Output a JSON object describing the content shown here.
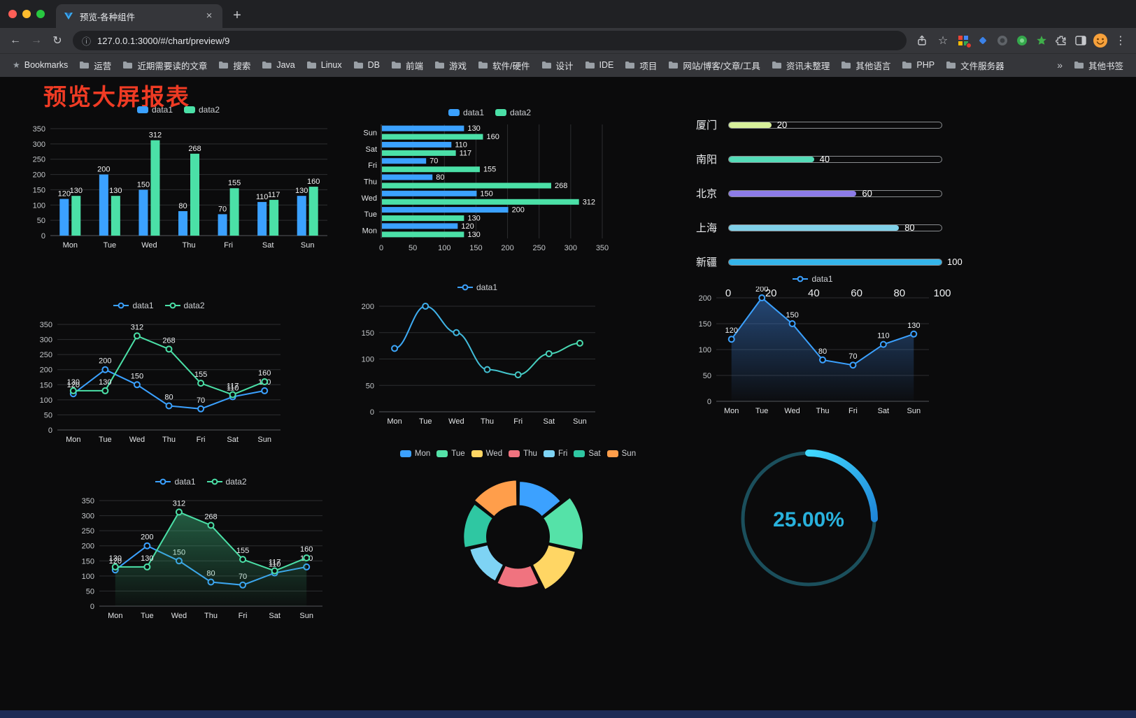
{
  "browser": {
    "tab_title": "预览-各种组件",
    "url": "127.0.0.1:3000/#/chart/preview/9"
  },
  "icons": {
    "back": "←",
    "forward": "→",
    "reload": "↻",
    "info": "ⓘ",
    "star": "☆",
    "new_tab": "+",
    "close_tab": "×",
    "menu": "⋮",
    "overflow": "»",
    "bookmarks_star": "★"
  },
  "bookmarks": {
    "label": "Bookmarks",
    "folders": [
      "运营",
      "近期需要读的文章",
      "搜索",
      "Java",
      "Linux",
      "DB",
      "前端",
      "游戏",
      "软件/硬件",
      "设计",
      "IDE",
      "项目",
      "网站/博客/文章/工具",
      "资讯未整理",
      "其他语言",
      "PHP",
      "文件服务器"
    ],
    "other_label": "其他书签"
  },
  "page": {
    "title": "预览大屏报表"
  },
  "chart_data": [
    {
      "id": "bar1",
      "type": "bar",
      "legend_position": "top",
      "categories": [
        "Mon",
        "Tue",
        "Wed",
        "Thu",
        "Fri",
        "Sat",
        "Sun"
      ],
      "series": [
        {
          "name": "data1",
          "color": "#3ba1ff",
          "values": [
            120,
            200,
            150,
            80,
            70,
            110,
            130
          ]
        },
        {
          "name": "data2",
          "color": "#4be0a7",
          "values": [
            130,
            130,
            312,
            268,
            155,
            117,
            160
          ]
        }
      ],
      "ylim": [
        0,
        350
      ],
      "ystep": 50
    },
    {
      "id": "hbar1",
      "type": "hbar",
      "legend_position": "top",
      "categories": [
        "Mon",
        "Tue",
        "Wed",
        "Thu",
        "Fri",
        "Sat",
        "Sun"
      ],
      "series": [
        {
          "name": "data1",
          "color": "#3ba1ff",
          "values": [
            120,
            200,
            150,
            80,
            70,
            110,
            130
          ]
        },
        {
          "name": "data2",
          "color": "#4be0a7",
          "values": [
            130,
            130,
            312,
            268,
            155,
            117,
            160
          ]
        }
      ],
      "xlim": [
        0,
        350
      ],
      "xstep": 50
    },
    {
      "id": "progress1",
      "type": "progress",
      "max": 100,
      "axis_ticks": [
        0,
        20,
        40,
        60,
        80,
        100
      ],
      "items": [
        {
          "label": "厦门",
          "value": 20,
          "color": "#d7ef9a"
        },
        {
          "label": "南阳",
          "value": 40,
          "color": "#55dcb8"
        },
        {
          "label": "北京",
          "value": 60,
          "color": "#8d7ce8"
        },
        {
          "label": "上海",
          "value": 80,
          "color": "#7fd0e8"
        },
        {
          "label": "新疆",
          "value": 100,
          "color": "#35b5ea"
        }
      ]
    },
    {
      "id": "line1",
      "type": "line",
      "legend_position": "top",
      "categories": [
        "Mon",
        "Tue",
        "Wed",
        "Thu",
        "Fri",
        "Sat",
        "Sun"
      ],
      "series": [
        {
          "name": "data1",
          "color": "#3ba1ff",
          "labels": true,
          "values": [
            120,
            200,
            150,
            80,
            70,
            110,
            130
          ]
        },
        {
          "name": "data2",
          "color": "#4be0a7",
          "labels": true,
          "values": [
            130,
            130,
            312,
            268,
            155,
            117,
            160
          ]
        }
      ],
      "ylim": [
        0,
        350
      ],
      "ystep": 50
    },
    {
      "id": "line2",
      "type": "line",
      "variant": "gradient-stroke",
      "smooth": true,
      "legend_position": "top",
      "gradient": [
        "#3ba1ff",
        "#4be0a7"
      ],
      "categories": [
        "Mon",
        "Tue",
        "Wed",
        "Thu",
        "Fri",
        "Sat",
        "Sun"
      ],
      "series": [
        {
          "name": "data1",
          "labels": false,
          "values": [
            120,
            200,
            150,
            80,
            70,
            110,
            130
          ]
        }
      ],
      "ylim": [
        0,
        200
      ],
      "ystep": 50
    },
    {
      "id": "line3",
      "type": "line",
      "legend_position": "top",
      "categories": [
        "Mon",
        "Tue",
        "Wed",
        "Thu",
        "Fri",
        "Sat",
        "Sun"
      ],
      "series": [
        {
          "name": "data1",
          "color": "#3ba1ff",
          "labels": true,
          "area": [
            "rgba(61,130,220,0.5)",
            "rgba(61,130,220,0.02)"
          ],
          "values": [
            120,
            200,
            150,
            80,
            70,
            110,
            130
          ]
        }
      ],
      "ylim": [
        0,
        200
      ],
      "ystep": 50
    },
    {
      "id": "line4",
      "type": "line",
      "legend_position": "top",
      "categories": [
        "Mon",
        "Tue",
        "Wed",
        "Thu",
        "Fri",
        "Sat",
        "Sun"
      ],
      "series": [
        {
          "name": "data1",
          "color": "#3ba1ff",
          "labels": true,
          "values": [
            120,
            200,
            150,
            80,
            70,
            110,
            130
          ]
        },
        {
          "name": "data2",
          "color": "#4be0a7",
          "labels": true,
          "area": [
            "rgba(63,190,130,0.45)",
            "rgba(63,190,130,0.03)"
          ],
          "values": [
            130,
            130,
            312,
            268,
            155,
            117,
            160
          ]
        }
      ],
      "ylim": [
        0,
        350
      ],
      "ystep": 50
    },
    {
      "id": "rose1",
      "type": "pie",
      "variant": "rose",
      "legend_position": "top",
      "categories": [
        "Mon",
        "Tue",
        "Wed",
        "Thu",
        "Fri",
        "Sat",
        "Sun"
      ],
      "values": [
        120,
        200,
        150,
        80,
        70,
        110,
        130
      ],
      "colors": [
        "#3ca1ff",
        "#55e2a8",
        "#ffd664",
        "#f0737f",
        "#7ed3f4",
        "#2fc7a2",
        "#ff9e4b"
      ]
    },
    {
      "id": "gauge1",
      "type": "gauge",
      "value": 25,
      "label": "25.00%",
      "track_color": "#1b4f5c",
      "arc_colors": [
        "#41d9ff",
        "#1f86d8"
      ],
      "text_color": "#29b2dd"
    }
  ]
}
